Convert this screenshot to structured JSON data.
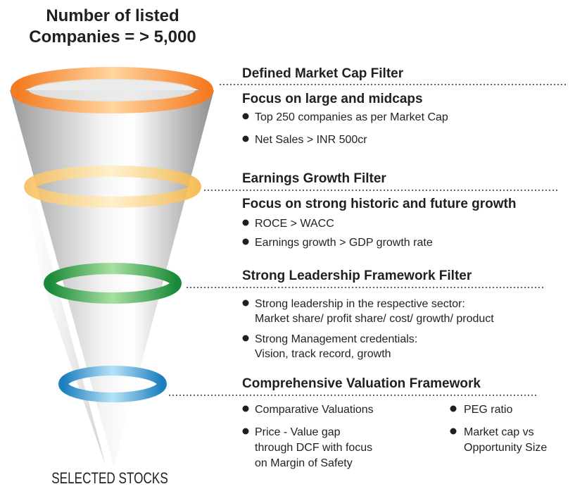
{
  "header": {
    "title": [
      "Number of listed",
      "Companies = > 5,000"
    ]
  },
  "filters": [
    {
      "title": "Defined Market Cap Filter",
      "subtitle": "Focus on large and midcaps",
      "bullets": [
        [
          "Top 250 companies as per Market Cap"
        ],
        [
          "Net Sales > INR 500cr"
        ]
      ]
    },
    {
      "title": "Earnings Growth Filter",
      "subtitle": "Focus on strong historic and future growth",
      "bullets": [
        [
          "ROCE > WACC"
        ],
        [
          "Earnings growth > GDP growth rate"
        ]
      ]
    },
    {
      "title": "Strong Leadership Framework Filter",
      "bullets": [
        [
          "Strong leadership in the respective sector:",
          "Market share/ profit share/ cost/ growth/ product"
        ],
        [
          "Strong Management credentials:",
          "Vision, track record, growth"
        ]
      ]
    },
    {
      "title": "Comprehensive Valuation Framework",
      "bullets": [
        [
          "Comparative Valuations"
        ],
        [
          "Price - Value gap",
          "through DCF with focus",
          "on Margin of Safety"
        ],
        [
          "PEG ratio"
        ],
        [
          "Market cap vs",
          "Opportunity Size"
        ]
      ]
    }
  ],
  "footer": "SELECTED STOCKS"
}
